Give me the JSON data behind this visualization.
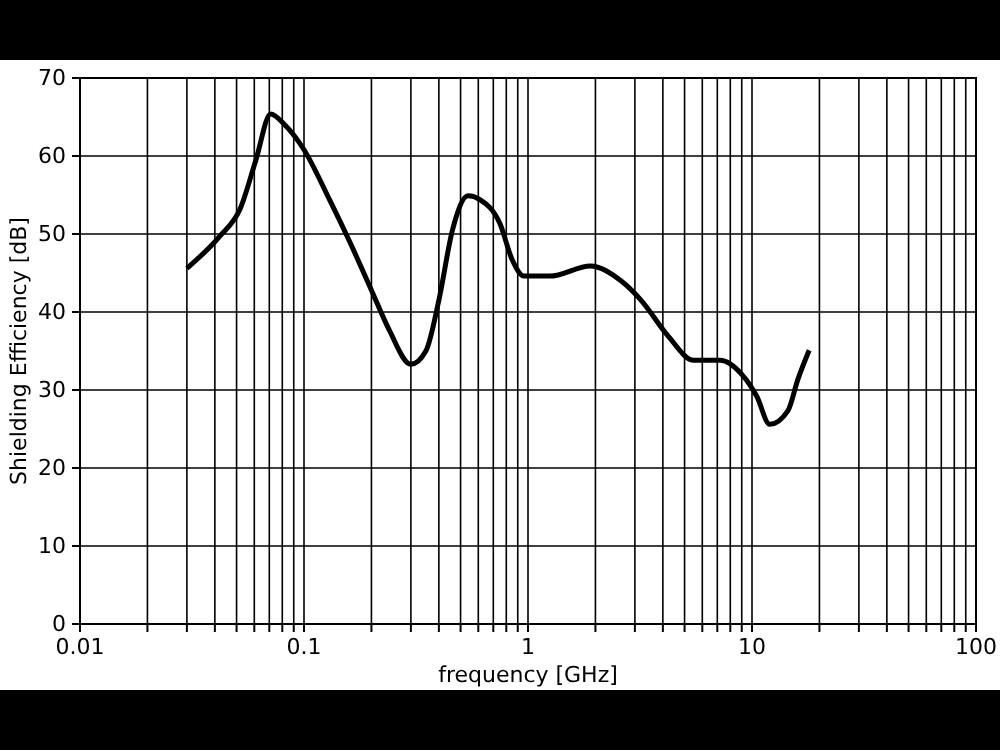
{
  "chart_data": {
    "type": "line",
    "xlabel": "frequency [GHz]",
    "ylabel": "Shielding Efficiency [dB]",
    "log": "x",
    "grid": true,
    "line_style": "solid",
    "marker": "none",
    "xlim": [
      0.01,
      100
    ],
    "ylim": [
      0,
      70
    ],
    "xticks": [
      0.01,
      {
        "value": 0.02,
        "label": null
      },
      {
        "value": 0.03,
        "label": null
      },
      {
        "value": 0.04,
        "label": null
      },
      {
        "value": 0.05,
        "label": null
      },
      {
        "value": 0.06,
        "label": null
      },
      {
        "value": 0.07,
        "label": null
      },
      {
        "value": 0.08,
        "label": null
      },
      {
        "value": 0.09,
        "label": null
      },
      0.1,
      {
        "value": 0.2,
        "label": null
      },
      {
        "value": 0.3,
        "label": null
      },
      {
        "value": 0.4,
        "label": null
      },
      {
        "value": 0.5,
        "label": null
      },
      {
        "value": 0.6,
        "label": null
      },
      {
        "value": 0.7,
        "label": null
      },
      {
        "value": 0.8,
        "label": null
      },
      {
        "value": 0.9,
        "label": null
      },
      1,
      {
        "value": 2,
        "label": null
      },
      {
        "value": 3,
        "label": null
      },
      {
        "value": 4,
        "label": null
      },
      {
        "value": 5,
        "label": null
      },
      {
        "value": 6,
        "label": null
      },
      {
        "value": 7,
        "label": null
      },
      {
        "value": 8,
        "label": null
      },
      {
        "value": 9,
        "label": null
      },
      10,
      {
        "value": 20,
        "label": null
      },
      {
        "value": 30,
        "label": null
      },
      {
        "value": 40,
        "label": null
      },
      {
        "value": 50,
        "label": null
      },
      {
        "value": 60,
        "label": null
      },
      {
        "value": 70,
        "label": null
      },
      {
        "value": 80,
        "label": null
      },
      {
        "value": 90,
        "label": null
      },
      100
    ],
    "yticks": [
      0,
      10,
      20,
      30,
      40,
      50,
      60,
      70
    ],
    "series": [
      {
        "color": "#000000",
        "x": [
          0.03,
          0.042,
          0.052,
          0.061,
          0.071,
          0.082,
          0.1,
          0.13,
          0.16,
          0.2,
          0.24,
          0.3,
          0.35,
          0.4,
          0.46,
          0.54,
          0.61,
          0.75,
          0.85,
          0.96,
          1.25,
          1.9,
          2.6,
          3.2,
          4.2,
          5.5,
          7.2,
          9,
          10.5,
          12,
          14.5,
          16,
          18
        ],
        "values": [
          45.6,
          49.7,
          53.3,
          59.5,
          65.4,
          64,
          60.8,
          54.4,
          49,
          42.8,
          37.7,
          33.3,
          35,
          41.5,
          50.5,
          54.9,
          54.4,
          51.3,
          46.7,
          44.6,
          44.6,
          45.9,
          44,
          41.5,
          37,
          33.8,
          33.8,
          32,
          29.2,
          25.6,
          27.4,
          31.3,
          35.1
        ]
      }
    ]
  }
}
